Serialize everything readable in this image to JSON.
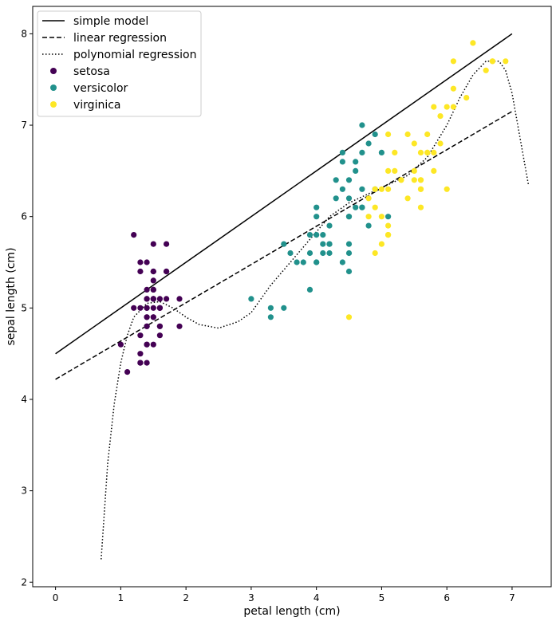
{
  "chart_data": {
    "type": "scatter",
    "xlabel": "petal length (cm)",
    "ylabel": "sepal length (cm)",
    "xlim": [
      -0.35,
      7.6
    ],
    "ylim": [
      1.95,
      8.3
    ],
    "xticks": [
      0,
      1,
      2,
      3,
      4,
      5,
      6,
      7
    ],
    "yticks": [
      2,
      3,
      4,
      5,
      6,
      7,
      8
    ],
    "grid": false,
    "legend_position": "top-left",
    "lines": [
      {
        "name": "simple model",
        "style": "solid",
        "color": "#000000",
        "x": [
          0,
          7
        ],
        "y": [
          4.5,
          8.0
        ]
      },
      {
        "name": "linear regression",
        "style": "dashed",
        "color": "#000000",
        "x": [
          0,
          7
        ],
        "y": [
          4.22,
          7.15
        ]
      },
      {
        "name": "polynomial regression",
        "style": "dotted",
        "color": "#000000",
        "x": [
          0.7,
          0.8,
          0.9,
          1.0,
          1.1,
          1.2,
          1.4,
          1.6,
          1.8,
          2.0,
          2.2,
          2.5,
          2.8,
          3.0,
          3.3,
          3.6,
          3.9,
          4.2,
          4.5,
          4.8,
          5.1,
          5.4,
          5.7,
          6.0,
          6.2,
          6.4,
          6.6,
          6.8,
          6.9,
          7.0,
          7.1,
          7.25
        ],
        "y": [
          2.25,
          3.3,
          3.95,
          4.4,
          4.7,
          4.9,
          5.05,
          5.07,
          5.0,
          4.9,
          4.82,
          4.78,
          4.85,
          4.95,
          5.25,
          5.5,
          5.75,
          6.0,
          6.15,
          6.25,
          6.35,
          6.45,
          6.65,
          7.0,
          7.3,
          7.55,
          7.7,
          7.7,
          7.6,
          7.35,
          6.95,
          6.35
        ]
      }
    ],
    "series": [
      {
        "name": "setosa",
        "color": "#440154",
        "points": [
          [
            1.4,
            5.1
          ],
          [
            1.4,
            4.9
          ],
          [
            1.3,
            4.7
          ],
          [
            1.5,
            4.6
          ],
          [
            1.4,
            5.0
          ],
          [
            1.7,
            5.4
          ],
          [
            1.4,
            4.6
          ],
          [
            1.5,
            5.0
          ],
          [
            1.4,
            4.4
          ],
          [
            1.5,
            4.9
          ],
          [
            1.5,
            5.4
          ],
          [
            1.6,
            4.8
          ],
          [
            1.4,
            4.8
          ],
          [
            1.1,
            4.3
          ],
          [
            1.2,
            5.8
          ],
          [
            1.5,
            5.7
          ],
          [
            1.3,
            5.4
          ],
          [
            1.4,
            5.1
          ],
          [
            1.7,
            5.7
          ],
          [
            1.5,
            5.1
          ],
          [
            1.7,
            5.4
          ],
          [
            1.5,
            5.1
          ],
          [
            1.0,
            4.6
          ],
          [
            1.7,
            5.1
          ],
          [
            1.9,
            4.8
          ],
          [
            1.6,
            5.0
          ],
          [
            1.6,
            5.0
          ],
          [
            1.5,
            5.2
          ],
          [
            1.4,
            5.2
          ],
          [
            1.6,
            4.7
          ],
          [
            1.6,
            4.8
          ],
          [
            1.5,
            5.4
          ],
          [
            1.5,
            5.2
          ],
          [
            1.4,
            5.5
          ],
          [
            1.5,
            4.9
          ],
          [
            1.2,
            5.0
          ],
          [
            1.3,
            5.5
          ],
          [
            1.4,
            4.9
          ],
          [
            1.3,
            4.4
          ],
          [
            1.5,
            5.1
          ],
          [
            1.3,
            5.0
          ],
          [
            1.3,
            4.5
          ],
          [
            1.3,
            4.4
          ],
          [
            1.6,
            5.0
          ],
          [
            1.9,
            5.1
          ],
          [
            1.4,
            4.8
          ],
          [
            1.6,
            5.1
          ],
          [
            1.4,
            4.6
          ],
          [
            1.5,
            5.3
          ],
          [
            1.4,
            5.0
          ]
        ]
      },
      {
        "name": "versicolor",
        "color": "#21918c",
        "points": [
          [
            4.7,
            7.0
          ],
          [
            4.5,
            6.4
          ],
          [
            4.9,
            6.9
          ],
          [
            4.0,
            5.5
          ],
          [
            4.6,
            6.5
          ],
          [
            4.5,
            5.7
          ],
          [
            4.7,
            6.3
          ],
          [
            3.3,
            4.9
          ],
          [
            4.6,
            6.6
          ],
          [
            3.9,
            5.2
          ],
          [
            3.5,
            5.0
          ],
          [
            4.2,
            5.9
          ],
          [
            4.0,
            6.0
          ],
          [
            4.7,
            6.1
          ],
          [
            3.6,
            5.6
          ],
          [
            4.4,
            6.7
          ],
          [
            4.5,
            5.6
          ],
          [
            4.1,
            5.8
          ],
          [
            4.5,
            6.2
          ],
          [
            3.9,
            5.6
          ],
          [
            4.8,
            5.9
          ],
          [
            4.0,
            6.1
          ],
          [
            4.9,
            6.3
          ],
          [
            4.7,
            6.1
          ],
          [
            4.3,
            6.4
          ],
          [
            4.4,
            6.6
          ],
          [
            4.8,
            6.8
          ],
          [
            5.0,
            6.7
          ],
          [
            4.5,
            6.0
          ],
          [
            3.5,
            5.7
          ],
          [
            3.8,
            5.5
          ],
          [
            3.7,
            5.5
          ],
          [
            3.9,
            5.8
          ],
          [
            5.1,
            6.0
          ],
          [
            4.5,
            5.4
          ],
          [
            4.5,
            6.0
          ],
          [
            4.7,
            6.7
          ],
          [
            4.4,
            6.3
          ],
          [
            4.1,
            5.6
          ],
          [
            4.0,
            5.5
          ],
          [
            4.4,
            5.5
          ],
          [
            4.6,
            6.1
          ],
          [
            4.0,
            5.8
          ],
          [
            3.3,
            5.0
          ],
          [
            4.2,
            5.6
          ],
          [
            4.2,
            5.7
          ],
          [
            4.2,
            5.7
          ],
          [
            4.3,
            6.2
          ],
          [
            3.0,
            5.1
          ],
          [
            4.1,
            5.7
          ]
        ]
      },
      {
        "name": "virginica",
        "color": "#fde725",
        "points": [
          [
            6.0,
            6.3
          ],
          [
            5.1,
            5.8
          ],
          [
            5.9,
            7.1
          ],
          [
            5.6,
            6.3
          ],
          [
            5.8,
            6.5
          ],
          [
            6.6,
            7.6
          ],
          [
            4.5,
            4.9
          ],
          [
            6.3,
            7.3
          ],
          [
            5.8,
            6.7
          ],
          [
            6.1,
            7.2
          ],
          [
            5.1,
            6.5
          ],
          [
            5.3,
            6.4
          ],
          [
            5.5,
            6.8
          ],
          [
            5.0,
            5.7
          ],
          [
            5.1,
            5.8
          ],
          [
            5.3,
            6.4
          ],
          [
            5.5,
            6.5
          ],
          [
            6.7,
            7.7
          ],
          [
            6.9,
            7.7
          ],
          [
            5.0,
            6.0
          ],
          [
            5.7,
            6.9
          ],
          [
            4.9,
            5.6
          ],
          [
            6.7,
            7.7
          ],
          [
            4.9,
            6.3
          ],
          [
            5.7,
            6.7
          ],
          [
            6.0,
            7.2
          ],
          [
            4.8,
            6.2
          ],
          [
            4.9,
            6.1
          ],
          [
            5.6,
            6.4
          ],
          [
            5.8,
            7.2
          ],
          [
            6.1,
            7.4
          ],
          [
            6.4,
            7.9
          ],
          [
            5.6,
            6.4
          ],
          [
            5.1,
            6.3
          ],
          [
            5.6,
            6.1
          ],
          [
            6.1,
            7.7
          ],
          [
            5.6,
            6.3
          ],
          [
            5.5,
            6.4
          ],
          [
            4.8,
            6.0
          ],
          [
            5.4,
            6.9
          ],
          [
            5.6,
            6.7
          ],
          [
            5.1,
            6.9
          ],
          [
            5.1,
            5.8
          ],
          [
            5.9,
            6.8
          ],
          [
            5.7,
            6.7
          ],
          [
            5.2,
            6.7
          ],
          [
            5.0,
            6.3
          ],
          [
            5.2,
            6.5
          ],
          [
            5.4,
            6.2
          ],
          [
            5.1,
            5.9
          ]
        ]
      }
    ]
  }
}
